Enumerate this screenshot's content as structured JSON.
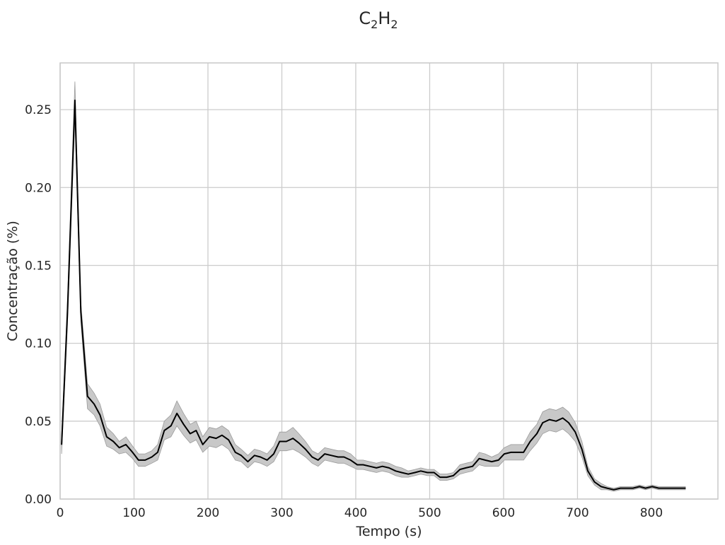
{
  "chart_data": {
    "type": "line",
    "title": "C2H2",
    "title_main": "C",
    "title_sub1": "2",
    "title_mid": "H",
    "title_sub2": "2",
    "xlabel": "Tempo (s)",
    "ylabel": "Concentração (%)",
    "xlim": [
      0,
      890
    ],
    "ylim": [
      0,
      0.28
    ],
    "xticks": [
      0,
      100,
      200,
      300,
      400,
      500,
      600,
      700,
      800
    ],
    "yticks": [
      0.0,
      0.05,
      0.1,
      0.15,
      0.2,
      0.25
    ],
    "xtick_labels": [
      "0",
      "100",
      "200",
      "300",
      "400",
      "500",
      "600",
      "700",
      "800"
    ],
    "ytick_labels": [
      "0.00",
      "0.05",
      "0.10",
      "0.15",
      "0.20",
      "0.25"
    ],
    "grid": true,
    "colors": {
      "line": "#000000",
      "band": "#c8c8c8",
      "band_edge": "#9a9a9a",
      "grid": "#cccccc",
      "spine": "#c8c8c8"
    },
    "series": [
      {
        "x": [
          2,
          10,
          20,
          28,
          37,
          46,
          54,
          63,
          72,
          80,
          89,
          98,
          106,
          115,
          124,
          132,
          141,
          150,
          158,
          167,
          176,
          184,
          193,
          202,
          211,
          219,
          228,
          237,
          245,
          254,
          263,
          271,
          280,
          289,
          297,
          306,
          315,
          323,
          332,
          341,
          349,
          358,
          367,
          376,
          384,
          393,
          402,
          410,
          419,
          428,
          436,
          445,
          454,
          462,
          471,
          480,
          488,
          497,
          506,
          514,
          523,
          532,
          541,
          549,
          558,
          567,
          575,
          584,
          593,
          601,
          610,
          619,
          627,
          636,
          645,
          653,
          662,
          671,
          680,
          688,
          697,
          706,
          714,
          723,
          732,
          740,
          749,
          758,
          766,
          775,
          784,
          792,
          801,
          810,
          818,
          827,
          836,
          846
        ],
        "y": [
          0.035,
          0.12,
          0.256,
          0.12,
          0.066,
          0.061,
          0.054,
          0.04,
          0.037,
          0.033,
          0.035,
          0.03,
          0.025,
          0.025,
          0.027,
          0.03,
          0.044,
          0.047,
          0.055,
          0.048,
          0.042,
          0.044,
          0.035,
          0.04,
          0.039,
          0.041,
          0.038,
          0.03,
          0.028,
          0.024,
          0.028,
          0.027,
          0.025,
          0.029,
          0.037,
          0.037,
          0.039,
          0.036,
          0.032,
          0.027,
          0.025,
          0.029,
          0.028,
          0.027,
          0.027,
          0.025,
          0.022,
          0.022,
          0.021,
          0.02,
          0.021,
          0.02,
          0.018,
          0.017,
          0.016,
          0.017,
          0.018,
          0.017,
          0.017,
          0.014,
          0.014,
          0.015,
          0.019,
          0.02,
          0.021,
          0.026,
          0.025,
          0.024,
          0.025,
          0.029,
          0.03,
          0.03,
          0.03,
          0.037,
          0.042,
          0.049,
          0.051,
          0.05,
          0.052,
          0.049,
          0.043,
          0.032,
          0.018,
          0.011,
          0.008,
          0.007,
          0.006,
          0.007,
          0.007,
          0.007,
          0.008,
          0.007,
          0.008,
          0.007,
          0.007,
          0.007,
          0.007,
          0.007
        ],
        "ci": [
          0.006,
          0.008,
          0.012,
          0.006,
          0.008,
          0.007,
          0.007,
          0.006,
          0.005,
          0.004,
          0.005,
          0.004,
          0.004,
          0.004,
          0.004,
          0.005,
          0.006,
          0.007,
          0.008,
          0.007,
          0.006,
          0.006,
          0.005,
          0.006,
          0.006,
          0.006,
          0.006,
          0.005,
          0.004,
          0.004,
          0.004,
          0.004,
          0.004,
          0.005,
          0.006,
          0.006,
          0.007,
          0.006,
          0.005,
          0.004,
          0.004,
          0.004,
          0.004,
          0.004,
          0.004,
          0.004,
          0.003,
          0.003,
          0.003,
          0.003,
          0.003,
          0.003,
          0.003,
          0.003,
          0.002,
          0.002,
          0.002,
          0.002,
          0.002,
          0.002,
          0.002,
          0.002,
          0.003,
          0.003,
          0.003,
          0.004,
          0.004,
          0.003,
          0.004,
          0.004,
          0.005,
          0.005,
          0.005,
          0.006,
          0.006,
          0.007,
          0.007,
          0.007,
          0.007,
          0.007,
          0.006,
          0.005,
          0.003,
          0.002,
          0.002,
          0.001,
          0.001,
          0.001,
          0.001,
          0.001,
          0.001,
          0.001,
          0.001,
          0.001,
          0.001,
          0.001,
          0.001,
          0.001
        ]
      }
    ]
  }
}
